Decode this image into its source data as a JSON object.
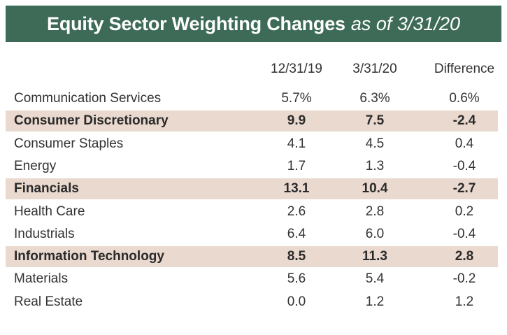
{
  "header": {
    "title": "Equity Sector Weighting Changes",
    "subtitle": "as of 3/31/20",
    "background": "#3d6b57"
  },
  "chart_data": {
    "type": "table",
    "title": "Equity Sector Weighting Changes as of 3/31/20",
    "columns": [
      "12/31/19",
      "3/31/20",
      "Difference"
    ],
    "highlight_color": "#ead9cf",
    "rows": [
      {
        "sector": "Communication Services",
        "v1": "5.7%",
        "v2": "6.3%",
        "diff": "0.6%",
        "highlight": false
      },
      {
        "sector": "Consumer Discretionary",
        "v1": "9.9",
        "v2": "7.5",
        "diff": "-2.4",
        "highlight": true
      },
      {
        "sector": "Consumer Staples",
        "v1": "4.1",
        "v2": "4.5",
        "diff": "0.4",
        "highlight": false
      },
      {
        "sector": "Energy",
        "v1": "1.7",
        "v2": "1.3",
        "diff": "-0.4",
        "highlight": false
      },
      {
        "sector": "Financials",
        "v1": "13.1",
        "v2": "10.4",
        "diff": "-2.7",
        "highlight": true
      },
      {
        "sector": "Health Care",
        "v1": "2.6",
        "v2": "2.8",
        "diff": "0.2",
        "highlight": false
      },
      {
        "sector": "Industrials",
        "v1": "6.4",
        "v2": "6.0",
        "diff": "-0.4",
        "highlight": false
      },
      {
        "sector": "Information Technology",
        "v1": "8.5",
        "v2": "11.3",
        "diff": "2.8",
        "highlight": true
      },
      {
        "sector": "Materials",
        "v1": "5.6",
        "v2": "5.4",
        "diff": "-0.2",
        "highlight": false
      },
      {
        "sector": "Real Estate",
        "v1": "0.0",
        "v2": "1.2",
        "diff": "1.2",
        "highlight": false
      }
    ]
  }
}
